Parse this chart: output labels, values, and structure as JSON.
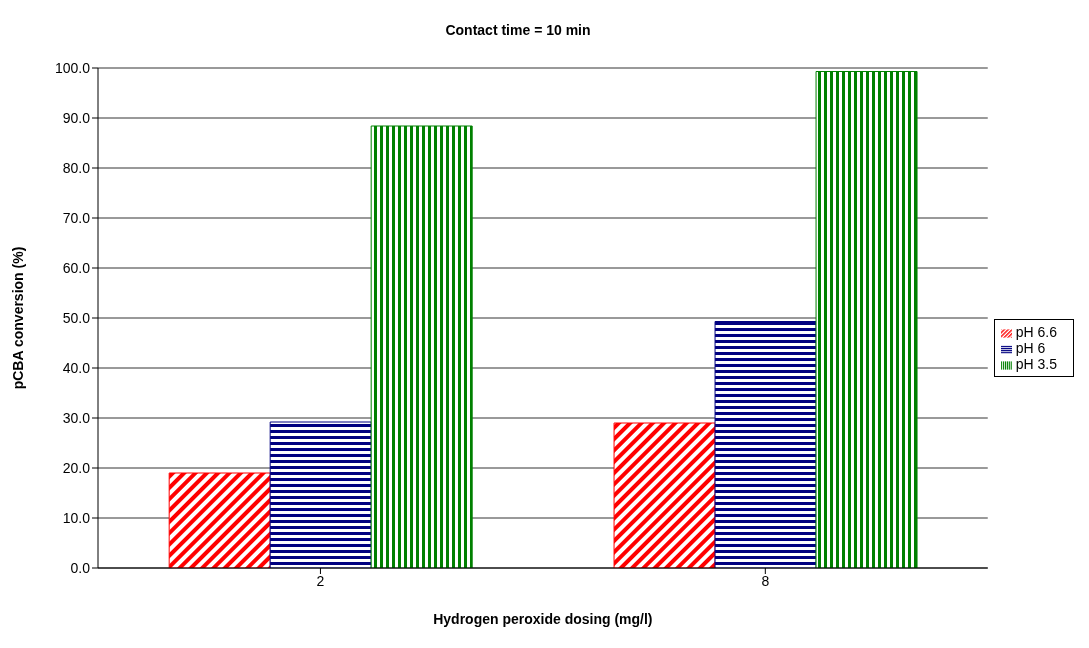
{
  "chart_data": {
    "type": "bar",
    "title": "Contact time = 10 min",
    "xlabel": "Hydrogen peroxide dosing (mg/l)",
    "ylabel": "pCBA conversion (%)",
    "categories": [
      "2",
      "8"
    ],
    "series": [
      {
        "name": "pH 6.6",
        "color": "#ff0000",
        "values": [
          19.0,
          29.0
        ]
      },
      {
        "name": "pH 6",
        "color": "#000080",
        "values": [
          29.2,
          49.3
        ]
      },
      {
        "name": "pH 3.5",
        "color": "#008000",
        "values": [
          88.4,
          99.3
        ]
      }
    ],
    "ylim": [
      0,
      100
    ],
    "yticks": [
      {
        "value": 0,
        "label": "0.0"
      },
      {
        "value": 10,
        "label": "10.0"
      },
      {
        "value": 20,
        "label": "20.0"
      },
      {
        "value": 30,
        "label": "30.0"
      },
      {
        "value": 40,
        "label": "40.0"
      },
      {
        "value": 50,
        "label": "50.0"
      },
      {
        "value": 60,
        "label": "60.0"
      },
      {
        "value": 70,
        "label": "70.0"
      },
      {
        "value": 80,
        "label": "80.0"
      },
      {
        "value": 90,
        "label": "90.0"
      },
      {
        "value": 100,
        "label": "100.0"
      }
    ],
    "grid": "y",
    "legend": "right"
  }
}
